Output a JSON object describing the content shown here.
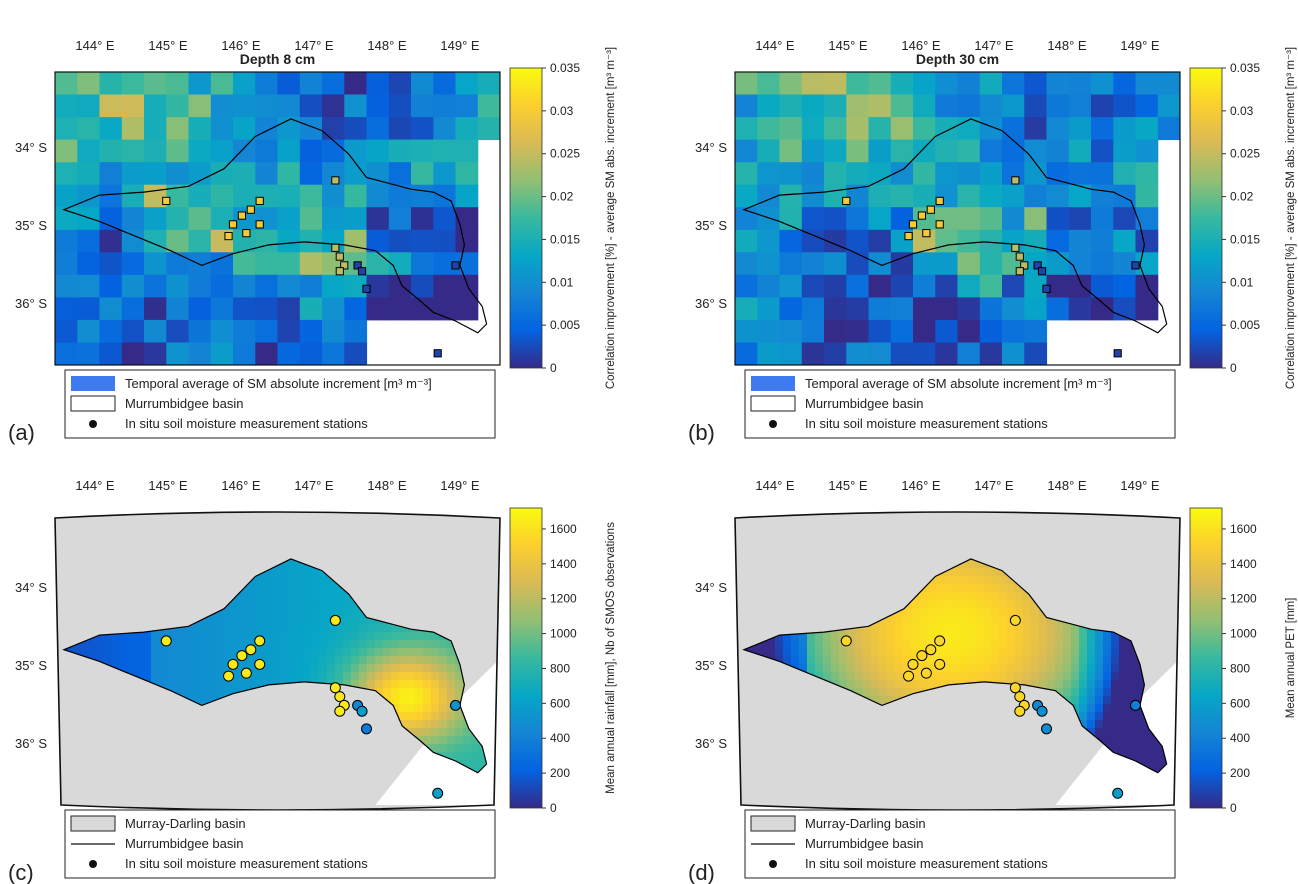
{
  "figure": {
    "panels": [
      {
        "id": "a",
        "letter": "(a)",
        "title": "Depth 8 cm",
        "kind": "grid",
        "seed": 7,
        "colorbar": {
          "label": "Correlation improvement [%] - average SM abs. increment [m³ m⁻³]",
          "ticks": [
            "0",
            "0.005",
            "0.01",
            "0.015",
            "0.02",
            "0.025",
            "0.03",
            "0.035"
          ]
        },
        "legend": [
          {
            "symbol": "blue-patch",
            "text": "Temporal average of SM absolute increment [m³ m⁻³]"
          },
          {
            "symbol": "white-patch",
            "text": "Murrumbidgee basin"
          },
          {
            "symbol": "dot",
            "text": "In situ soil moisture measurement stations"
          }
        ]
      },
      {
        "id": "b",
        "letter": "(b)",
        "title": "Depth 30 cm",
        "kind": "grid",
        "seed": 19,
        "colorbar": {
          "label": "Correlation improvement [%] - average SM abs. increment [m³ m⁻³]",
          "ticks": [
            "0",
            "0.005",
            "0.01",
            "0.015",
            "0.02",
            "0.025",
            "0.03",
            "0.035"
          ]
        },
        "legend": [
          {
            "symbol": "blue-patch",
            "text": "Temporal average of SM absolute increment [m³ m⁻³]"
          },
          {
            "symbol": "white-patch",
            "text": "Murrumbidgee basin"
          },
          {
            "symbol": "dot",
            "text": "In situ soil moisture measurement stations"
          }
        ]
      },
      {
        "id": "c",
        "letter": "(c)",
        "title": "",
        "kind": "rain",
        "colorbar": {
          "label": "Mean annual rainfall [mm], Nb of SMOS observations",
          "ticks": [
            "0",
            "200",
            "400",
            "600",
            "800",
            "1000",
            "1200",
            "1400",
            "1600"
          ]
        },
        "legend": [
          {
            "symbol": "grey-patch",
            "text": "Murray-Darling basin"
          },
          {
            "symbol": "line",
            "text": "Murrumbidgee basin"
          },
          {
            "symbol": "dot",
            "text": "In situ soil moisture measurement stations"
          }
        ]
      },
      {
        "id": "d",
        "letter": "(d)",
        "title": "",
        "kind": "pet",
        "colorbar": {
          "label": "Mean annual PET [mm]",
          "ticks": [
            "0",
            "200",
            "400",
            "600",
            "800",
            "1000",
            "1200",
            "1400",
            "1600"
          ]
        },
        "legend": [
          {
            "symbol": "grey-patch",
            "text": "Murray-Darling basin"
          },
          {
            "symbol": "line",
            "text": "Murrumbidgee basin"
          },
          {
            "symbol": "dot",
            "text": "In situ soil moisture measurement stations"
          }
        ]
      }
    ],
    "lon_labels": [
      "144° E",
      "145° E",
      "146° E",
      "147° E",
      "148° E",
      "149° E"
    ],
    "lat_labels": [
      "34° S",
      "35° S",
      "36° S"
    ],
    "colors": {
      "map_background": "#d9d9d9",
      "basin_outline": "#000000",
      "parula_low": "#3e26a8",
      "parula_high": "#f9fb0e"
    }
  }
}
